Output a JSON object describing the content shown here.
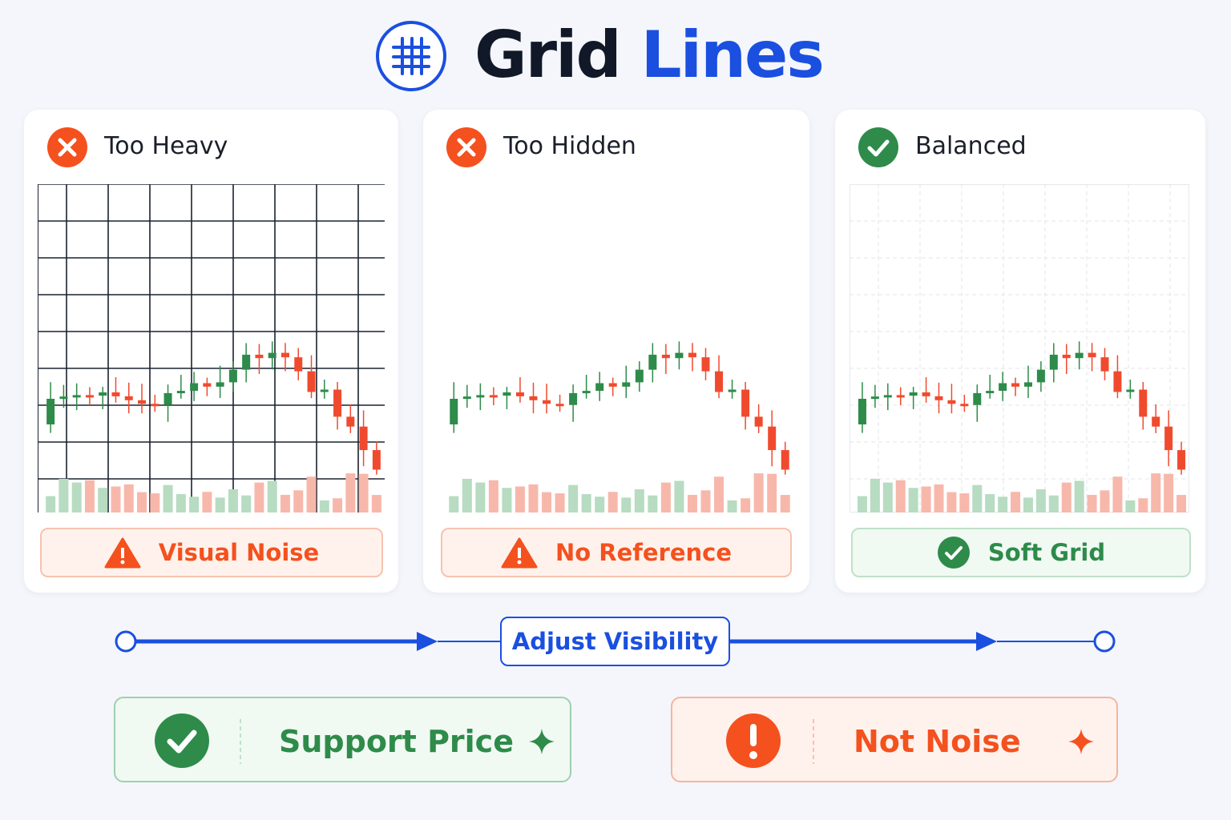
{
  "header": {
    "title_dark": "Grid",
    "title_accent": "Lines"
  },
  "panels": [
    {
      "title": "Too Heavy",
      "badge": "Visual Noise"
    },
    {
      "title": "Too Hidden",
      "badge": "No Reference"
    },
    {
      "title": "Balanced",
      "badge": "Soft Grid"
    }
  ],
  "slider": {
    "label": "Adjust Visibility"
  },
  "takeaways": [
    {
      "label": "Support Price"
    },
    {
      "label": "Not Noise"
    }
  ]
}
